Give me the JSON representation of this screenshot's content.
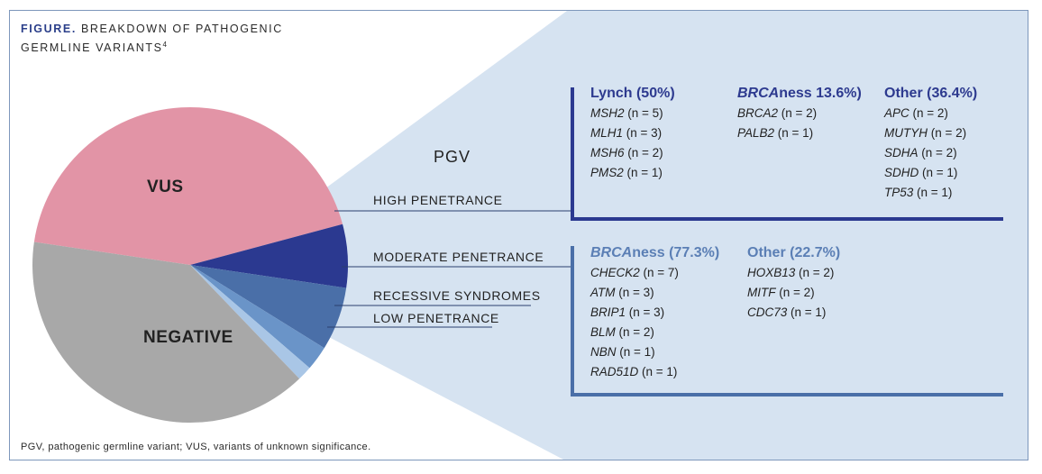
{
  "figure": {
    "label": "FIGURE.",
    "title_line1": "BREAKDOWN OF PATHOGENIC",
    "title_line2": "GERMLINE VARIANTS",
    "title_sup": "4",
    "footnote": "PGV, pathogenic germline variant; VUS, variants of unknown significance."
  },
  "colors": {
    "vus": "#e294a6",
    "negative": "#a8a8a8",
    "high_penetrance": "#2b3990",
    "moderate_penetrance": "#4a6fa8",
    "recessive_syndromes": "#6a94c8",
    "low_penetrance": "#a9c6e6",
    "callout": "#d6e3f1",
    "frame": "#7d97bb"
  },
  "chart_data": {
    "type": "pie",
    "title": "BREAKDOWN OF PATHOGENIC GERMLINE VARIANTS",
    "slices": [
      {
        "label": "VUS",
        "value": 43.5,
        "group": "VUS"
      },
      {
        "label": "HIGH PENETRANCE",
        "value": 6.5,
        "group": "PGV"
      },
      {
        "label": "MODERATE PENETRANCE",
        "value": 6.5,
        "group": "PGV"
      },
      {
        "label": "RECESSIVE SYNDROMES",
        "value": 2.5,
        "group": "PGV"
      },
      {
        "label": "LOW PENETRANCE",
        "value": 1.5,
        "group": "PGV"
      },
      {
        "label": "NEGATIVE",
        "value": 39.5,
        "group": "NEGATIVE"
      }
    ],
    "group_labels": {
      "vus": "VUS",
      "negative": "NEGATIVE",
      "pgv": "PGV"
    }
  },
  "high_penetrance": {
    "columns": [
      {
        "heading": "Lynch (50%)",
        "items": [
          {
            "gene": "MSH2",
            "count": " (n = 5)"
          },
          {
            "gene": "MLH1",
            "count": " (n = 3)"
          },
          {
            "gene": "MSH6",
            "count": " (n = 2)"
          },
          {
            "gene": "PMS2",
            "count": " (n = 1)"
          }
        ]
      },
      {
        "heading_italic": "BRCA",
        "heading_rest": "ness 13.6%)",
        "items": [
          {
            "gene": "BRCA2",
            "count": " (n = 2)"
          },
          {
            "gene": "PALB2",
            "count": " (n = 1)"
          }
        ]
      },
      {
        "heading": "Other (36.4%)",
        "items": [
          {
            "gene": "APC",
            "count": " (n = 2)"
          },
          {
            "gene": "MUTYH",
            "count": " (n = 2)"
          },
          {
            "gene": "SDHA",
            "count": " (n = 2)"
          },
          {
            "gene": "SDHD",
            "count": " (n = 1)"
          },
          {
            "gene": "TP53",
            "count": " (n = 1)"
          }
        ]
      }
    ]
  },
  "moderate_penetrance": {
    "columns": [
      {
        "heading_italic": "BRCA",
        "heading_rest": "ness (77.3%)",
        "items": [
          {
            "gene": "CHECK2",
            "count": " (n = 7)"
          },
          {
            "gene": "ATM",
            "count": " (n = 3)"
          },
          {
            "gene": "BRIP1",
            "count": " (n = 3)"
          },
          {
            "gene": "BLM",
            "count": " (n = 2)"
          },
          {
            "gene": "NBN",
            "count": " (n = 1)"
          },
          {
            "gene": "RAD51D",
            "count": " (n = 1)"
          }
        ]
      },
      {
        "heading": "Other (22.7%)",
        "items": [
          {
            "gene": "HOXB13",
            "count": " (n = 2)"
          },
          {
            "gene": "MITF",
            "count": " (n = 2)"
          },
          {
            "gene": "CDC73",
            "count": " (n = 1)"
          }
        ]
      }
    ]
  }
}
